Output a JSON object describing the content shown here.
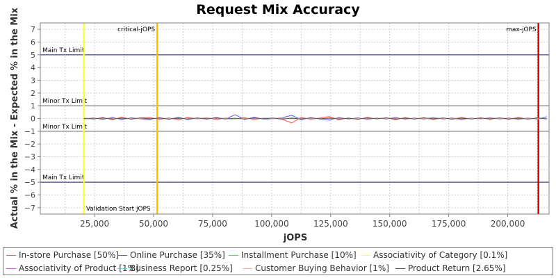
{
  "chart_data": {
    "type": "line",
    "title": "Request Mix Accuracy",
    "xlabel": "jOPS",
    "ylabel": "Actual % in the Mix - Expected % in the Mix",
    "xlim": [
      2000,
      217500
    ],
    "ylim": [
      -7.5,
      7.5
    ],
    "x_ticks": [
      25000,
      50000,
      75000,
      100000,
      125000,
      150000,
      175000,
      200000
    ],
    "x_tick_labels": [
      "25,000",
      "50,000",
      "75,000",
      "100,000",
      "125,000",
      "150,000",
      "175,000",
      "200,000"
    ],
    "y_ticks": [
      -7,
      -6,
      -5,
      -4,
      -3,
      -2,
      -1,
      0,
      1,
      2,
      3,
      4,
      5,
      6,
      7
    ],
    "y_tick_labels": [
      "−7",
      "−6",
      "−5",
      "−4",
      "−3",
      "−2",
      "−1",
      "0",
      "1",
      "2",
      "3",
      "4",
      "5",
      "6",
      "7"
    ],
    "grid": true,
    "legend_position": "bottom",
    "hlines": [
      {
        "y": 5,
        "label": "Main Tx Limit",
        "label_side": "above",
        "color": "#1a1a66"
      },
      {
        "y": 1,
        "label": "Minor Tx Limit",
        "label_side": "above",
        "color": "#666666"
      },
      {
        "y": -1,
        "label": "Minor Tx Limit",
        "label_side": "above",
        "color": "#666666"
      },
      {
        "y": -5,
        "label": "Main Tx Limit",
        "label_side": "above",
        "color": "#1a1a66"
      }
    ],
    "vlines": [
      {
        "x": 20500,
        "label": "Validation Start jOPS",
        "label_pos": "bottom",
        "color": "#ffff33"
      },
      {
        "x": 51500,
        "label": "critical-jOPS",
        "label_pos": "top",
        "color": "#ffc000"
      },
      {
        "x": 213000,
        "label": "max-jOPS",
        "label_pos": "top",
        "color": "#e00000"
      }
    ],
    "x": [
      20500,
      24500,
      28500,
      32500,
      36500,
      40500,
      44500,
      48500,
      52500,
      56500,
      60500,
      64500,
      68500,
      72500,
      76500,
      80500,
      84500,
      88500,
      92500,
      96500,
      100500,
      104500,
      108500,
      112500,
      116500,
      120500,
      124500,
      128500,
      132500,
      136500,
      140500,
      144500,
      148500,
      152500,
      156500,
      160500,
      164500,
      168500,
      172500,
      176500,
      180500,
      184500,
      188500,
      192500,
      196500,
      200500,
      204500,
      208500,
      212500,
      216500
    ],
    "series": [
      {
        "name": "In-store Purchase [50%]",
        "color": "#ff5555",
        "values": [
          0.02,
          -0.05,
          0.08,
          -0.1,
          0.12,
          -0.06,
          0.05,
          0.1,
          -0.08,
          0.06,
          -0.12,
          0.1,
          -0.04,
          0.07,
          -0.09,
          0.05,
          -0.03,
          0.08,
          -0.1,
          0.04,
          0.02,
          -0.06,
          -0.35,
          0.1,
          -0.08,
          0.06,
          0.15,
          -0.1,
          0.05,
          -0.07,
          0.09,
          -0.04,
          0.06,
          -0.1,
          0.08,
          -0.05,
          0.07,
          -0.09,
          0.05,
          -0.06,
          0.1,
          -0.04,
          0.06,
          -0.08,
          0.05,
          -0.07,
          0.09,
          -0.05,
          0.06,
          -0.04
        ]
      },
      {
        "name": "Online Purchase [35%]",
        "color": "#5555ff",
        "values": [
          -0.02,
          0.06,
          -0.08,
          0.1,
          -0.1,
          0.07,
          -0.05,
          -0.08,
          0.07,
          -0.06,
          0.1,
          -0.08,
          0.05,
          -0.06,
          0.08,
          -0.04,
          0.3,
          -0.07,
          0.09,
          -0.05,
          -0.02,
          0.07,
          0.25,
          -0.1,
          0.07,
          -0.05,
          -0.12,
          0.09,
          -0.06,
          0.06,
          -0.08,
          0.05,
          -0.05,
          0.1,
          -0.07,
          0.05,
          -0.06,
          0.08,
          -0.05,
          0.06,
          -0.09,
          0.04,
          -0.05,
          0.07,
          -0.05,
          0.06,
          -0.08,
          0.05,
          -0.06,
          0.15
        ]
      },
      {
        "name": "Installment Purchase [10%]",
        "color": "#55dd55",
        "values": [
          0.0,
          -0.03,
          0.04,
          -0.05,
          0.05,
          -0.03,
          0.03,
          -0.04,
          0.03,
          -0.03,
          0.05,
          -0.04,
          0.02,
          -0.03,
          0.04,
          -0.02,
          -0.05,
          0.03,
          -0.04,
          0.02,
          0.03,
          -0.03,
          0.05,
          -0.04,
          0.03,
          -0.02,
          0.04,
          -0.03,
          0.02,
          -0.03,
          0.04,
          -0.02,
          0.03,
          -0.04,
          0.03,
          -0.02,
          0.03,
          -0.04,
          0.02,
          -0.03,
          0.04,
          -0.02,
          0.03,
          -0.04,
          0.02,
          -0.03,
          0.04,
          -0.02,
          0.03,
          -0.02
        ]
      },
      {
        "name": "Associativity of Category [0.1%]",
        "color": "#ffff55",
        "values": [
          0.0,
          0.01,
          -0.01,
          0.01,
          -0.01,
          0.0,
          0.01,
          -0.01,
          0.0,
          0.01,
          -0.01,
          0.0,
          0.01,
          -0.01,
          0.0,
          0.01,
          -0.01,
          0.0,
          0.01,
          -0.01,
          0.0,
          0.01,
          -0.01,
          0.0,
          0.01,
          -0.01,
          0.0,
          0.01,
          -0.01,
          0.0,
          0.01,
          -0.01,
          0.0,
          0.01,
          -0.01,
          0.0,
          0.01,
          -0.01,
          0.0,
          0.01,
          -0.01,
          0.0,
          0.01,
          -0.01,
          0.0,
          0.01,
          -0.01,
          0.0,
          0.01,
          0.0
        ]
      },
      {
        "name": "Associativity of Product [1%]",
        "color": "#dd55dd",
        "values": [
          0.0,
          0.02,
          -0.02,
          0.03,
          -0.02,
          0.02,
          -0.03,
          0.02,
          -0.02,
          0.03,
          -0.02,
          0.02,
          -0.03,
          0.02,
          -0.02,
          0.03,
          -0.02,
          0.02,
          -0.03,
          0.02,
          -0.02,
          0.03,
          -0.02,
          0.02,
          -0.03,
          0.02,
          -0.02,
          0.03,
          -0.02,
          0.02,
          -0.03,
          0.02,
          -0.02,
          0.03,
          -0.02,
          0.02,
          -0.03,
          0.02,
          -0.02,
          0.03,
          -0.02,
          0.02,
          -0.03,
          0.02,
          -0.02,
          0.03,
          -0.02,
          0.02,
          -0.03,
          0.02
        ]
      },
      {
        "name": "Business Report [0.25%]",
        "color": "#55dddd",
        "values": [
          0.0,
          -0.01,
          0.02,
          -0.01,
          0.01,
          -0.02,
          0.01,
          -0.01,
          0.02,
          -0.01,
          0.01,
          -0.02,
          0.01,
          -0.01,
          0.02,
          -0.01,
          0.01,
          -0.02,
          0.01,
          -0.01,
          0.02,
          -0.01,
          0.01,
          -0.02,
          0.01,
          -0.01,
          0.02,
          -0.01,
          0.01,
          -0.02,
          0.01,
          -0.01,
          0.02,
          -0.01,
          0.01,
          -0.02,
          0.01,
          -0.01,
          0.02,
          -0.01,
          0.01,
          -0.02,
          0.01,
          -0.01,
          0.02,
          -0.01,
          0.01,
          -0.02,
          0.01,
          0.0
        ]
      },
      {
        "name": "Customer Buying Behavior [1%]",
        "color": "#ffaaaa",
        "values": [
          0.0,
          0.03,
          -0.02,
          0.04,
          -0.03,
          0.02,
          -0.04,
          0.03,
          -0.02,
          0.04,
          -0.03,
          0.02,
          -0.04,
          0.03,
          -0.02,
          0.04,
          -0.03,
          0.02,
          -0.04,
          0.03,
          -0.02,
          0.04,
          -0.03,
          0.02,
          -0.04,
          0.03,
          -0.02,
          0.04,
          -0.03,
          0.02,
          -0.04,
          0.03,
          -0.02,
          0.04,
          -0.03,
          0.02,
          -0.04,
          0.03,
          -0.02,
          0.04,
          -0.03,
          0.02,
          -0.04,
          0.03,
          -0.02,
          0.04,
          -0.03,
          0.02,
          -0.04,
          0.02
        ]
      },
      {
        "name": "Product Return [2.65%]",
        "color": "#555555",
        "values": [
          0.0,
          -0.02,
          0.03,
          -0.03,
          0.02,
          -0.03,
          0.04,
          -0.02,
          0.03,
          -0.04,
          0.02,
          -0.03,
          0.03,
          -0.02,
          0.04,
          -0.03,
          0.02,
          -0.04,
          0.03,
          -0.02,
          0.03,
          -0.04,
          0.02,
          -0.03,
          0.04,
          -0.02,
          0.03,
          -0.03,
          0.02,
          -0.04,
          0.03,
          -0.02,
          0.04,
          -0.03,
          0.02,
          -0.03,
          0.04,
          -0.02,
          0.03,
          -0.04,
          0.02,
          -0.03,
          0.03,
          -0.02,
          0.04,
          -0.03,
          0.02,
          -0.04,
          0.03,
          -0.02
        ]
      }
    ]
  }
}
